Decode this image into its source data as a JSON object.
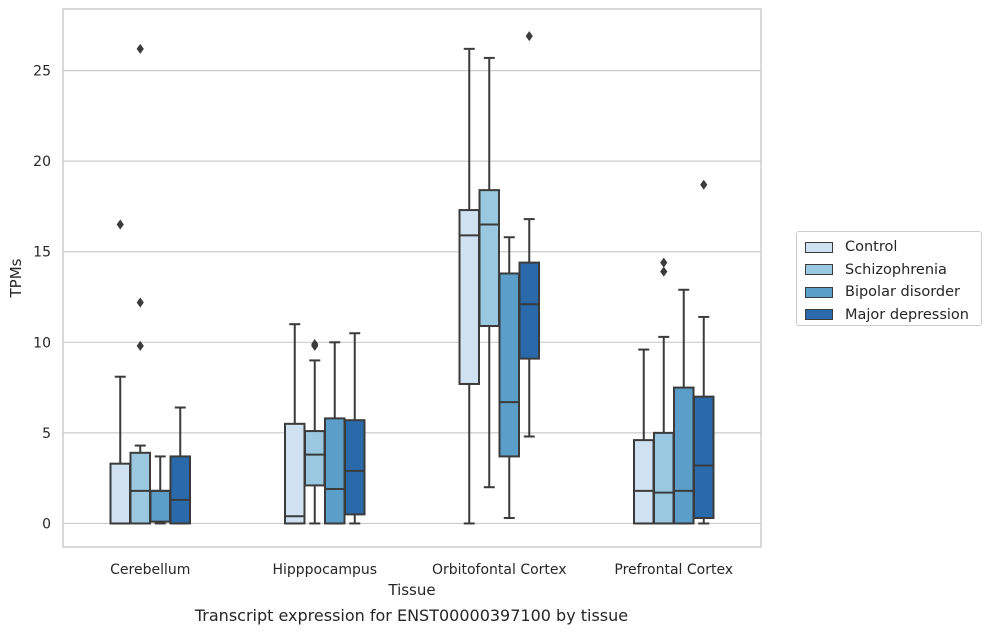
{
  "chart_data": {
    "type": "box",
    "caption": "Transcript expression for ENST00000397100 by tissue",
    "xlabel": "Tissue",
    "ylabel": "TPMs",
    "ylim": [
      -1.3,
      28.4
    ],
    "yticks": [
      0,
      5,
      10,
      15,
      20,
      25
    ],
    "grid": true,
    "legend_position": "right",
    "categories": [
      "Cerebellum",
      "Hipppocampus",
      "Orbitofontal Cortex",
      "Prefrontal Cortex"
    ],
    "series": [
      {
        "name": "Control",
        "color": "#d0e1f2",
        "boxes": [
          {
            "whislo": 0,
            "q1": 0,
            "med": 0,
            "q3": 3.3,
            "whishi": 8.1,
            "fliers": [
              16.5
            ]
          },
          {
            "whislo": 0,
            "q1": 0,
            "med": 0.4,
            "q3": 5.5,
            "whishi": 11.0,
            "fliers": []
          },
          {
            "whislo": 0,
            "q1": 7.7,
            "med": 15.9,
            "q3": 17.3,
            "whishi": 26.2,
            "fliers": []
          },
          {
            "whislo": 0,
            "q1": 0,
            "med": 1.8,
            "q3": 4.6,
            "whishi": 9.6,
            "fliers": []
          }
        ]
      },
      {
        "name": "Schizophrenia",
        "color": "#9ac8e0",
        "boxes": [
          {
            "whislo": 0,
            "q1": 0,
            "med": 1.8,
            "q3": 3.9,
            "whishi": 4.3,
            "fliers": [
              9.8,
              12.2,
              26.2
            ]
          },
          {
            "whislo": 0,
            "q1": 2.1,
            "med": 3.8,
            "q3": 5.1,
            "whishi": 9.0,
            "fliers": [
              9.8,
              9.9
            ]
          },
          {
            "whislo": 2.0,
            "q1": 10.9,
            "med": 16.5,
            "q3": 18.4,
            "whishi": 25.7,
            "fliers": []
          },
          {
            "whislo": 0,
            "q1": 0,
            "med": 1.7,
            "q3": 5.0,
            "whishi": 10.3,
            "fliers": [
              13.9,
              14.4
            ]
          }
        ]
      },
      {
        "name": "Bipolar disorder",
        "color": "#5a9ec9",
        "boxes": [
          {
            "whislo": 0,
            "q1": 0.1,
            "med": 1.8,
            "q3": 1.8,
            "whishi": 3.7,
            "fliers": []
          },
          {
            "whislo": 0,
            "q1": 0,
            "med": 1.9,
            "q3": 5.8,
            "whishi": 10.0,
            "fliers": []
          },
          {
            "whislo": 0.3,
            "q1": 3.7,
            "med": 6.7,
            "q3": 13.8,
            "whishi": 15.8,
            "fliers": []
          },
          {
            "whislo": 0,
            "q1": 0,
            "med": 1.8,
            "q3": 7.5,
            "whishi": 12.9,
            "fliers": []
          }
        ]
      },
      {
        "name": "Major depression",
        "color": "#2a6aaa",
        "boxes": [
          {
            "whislo": 0,
            "q1": 0,
            "med": 1.3,
            "q3": 3.7,
            "whishi": 6.4,
            "fliers": []
          },
          {
            "whislo": 0,
            "q1": 0.5,
            "med": 2.9,
            "q3": 5.7,
            "whishi": 10.5,
            "fliers": []
          },
          {
            "whislo": 4.8,
            "q1": 9.1,
            "med": 12.1,
            "q3": 14.4,
            "whishi": 16.8,
            "fliers": [
              26.9
            ]
          },
          {
            "whislo": 0,
            "q1": 0.3,
            "med": 3.2,
            "q3": 7.0,
            "whishi": 11.4,
            "fliers": [
              18.7
            ]
          }
        ]
      }
    ]
  }
}
